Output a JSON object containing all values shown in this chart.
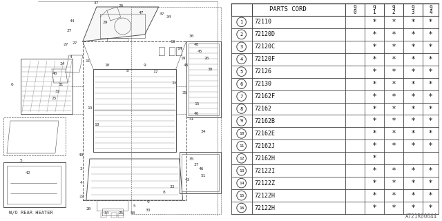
{
  "ref_code": "A721R00044",
  "diagram_label": "W/O REAR HEATER",
  "rows": [
    {
      "num": 1,
      "part": "72110",
      "cols": [
        false,
        false,
        true,
        true,
        true,
        true
      ]
    },
    {
      "num": 2,
      "part": "72120D",
      "cols": [
        false,
        false,
        true,
        true,
        true,
        true
      ]
    },
    {
      "num": 3,
      "part": "72120C",
      "cols": [
        false,
        false,
        true,
        true,
        true,
        true
      ]
    },
    {
      "num": 4,
      "part": "72120F",
      "cols": [
        false,
        false,
        true,
        true,
        true,
        true
      ]
    },
    {
      "num": 5,
      "part": "72126",
      "cols": [
        false,
        false,
        true,
        true,
        true,
        true
      ]
    },
    {
      "num": 6,
      "part": "72130",
      "cols": [
        false,
        false,
        true,
        true,
        true,
        true
      ]
    },
    {
      "num": 7,
      "part": "72162F",
      "cols": [
        false,
        false,
        true,
        true,
        true,
        true
      ]
    },
    {
      "num": 8,
      "part": "72162",
      "cols": [
        false,
        false,
        true,
        true,
        true,
        true
      ]
    },
    {
      "num": 9,
      "part": "72162B",
      "cols": [
        false,
        false,
        true,
        true,
        true,
        true
      ]
    },
    {
      "num": 10,
      "part": "72162E",
      "cols": [
        false,
        false,
        true,
        true,
        true,
        true
      ]
    },
    {
      "num": 11,
      "part": "72162J",
      "cols": [
        false,
        false,
        true,
        true,
        true,
        true
      ]
    },
    {
      "num": 12,
      "part": "72162H",
      "cols": [
        false,
        false,
        true,
        false,
        false,
        false
      ]
    },
    {
      "num": 13,
      "part": "72122I",
      "cols": [
        false,
        false,
        true,
        true,
        true,
        true
      ]
    },
    {
      "num": 14,
      "part": "72122Z",
      "cols": [
        false,
        false,
        true,
        true,
        true,
        true
      ]
    },
    {
      "num": 15,
      "part": "72122H",
      "cols": [
        false,
        false,
        true,
        true,
        true,
        true
      ]
    },
    {
      "num": 16,
      "part": "72122H",
      "cols": [
        false,
        false,
        true,
        true,
        true,
        true
      ]
    }
  ],
  "bg_color": "#ffffff",
  "grid_color": "#444444",
  "text_color": "#111111",
  "draw_color": "#555555",
  "font_size": 6.0,
  "header_font_size": 6.5,
  "star_font_size": 7.5,
  "circle_font_size": 5.0
}
